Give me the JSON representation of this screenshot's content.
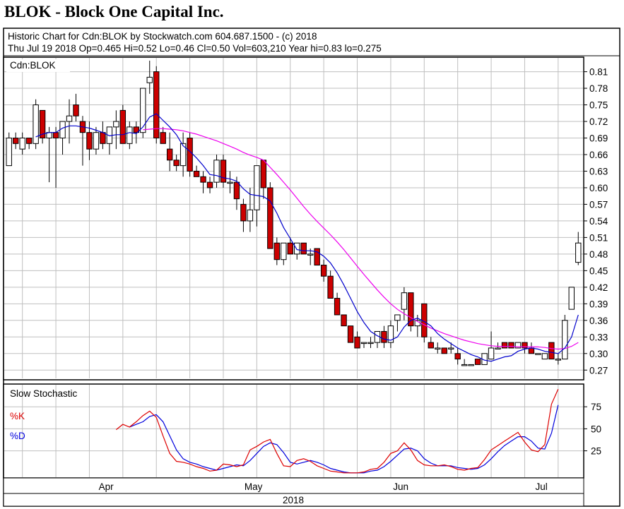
{
  "page_title": "BLOK - Block One Capital Inc.",
  "header": {
    "line1": "Historic Chart for Cdn:BLOK by Stockwatch.com 604.687.1500 - (c) 2018",
    "line2": "Thu Jul 19 2018  Op=0.465  Hi=0.52  Lo=0.46  Cl=0.50  Vol=603,210  Year hi=0.83  lo=0.275"
  },
  "colors": {
    "up_fill": "#ffffff",
    "down_fill": "#cc0000",
    "ma_short": "#0000cc",
    "ma_long": "#ee00ee",
    "k_line": "#dd0000",
    "d_line": "#0000dd",
    "grid": "#bfbfbf"
  },
  "chart_data": [
    {
      "type": "candlestick",
      "panel_label": "Cdn:BLOK",
      "ylim": [
        0.255,
        0.835
      ],
      "yticks": [
        0.81,
        0.78,
        0.75,
        0.72,
        0.69,
        0.66,
        0.63,
        0.6,
        0.57,
        0.54,
        0.51,
        0.48,
        0.45,
        0.42,
        0.39,
        0.36,
        0.33,
        0.3,
        0.27
      ],
      "ytick_labels": [
        "0.81",
        "0.78",
        "0.75",
        "0.72",
        "0.69",
        "0.66",
        "0.63",
        "0.60",
        "0.57",
        "0.54",
        "0.51",
        "0.48",
        "0.45",
        "0.42",
        "0.39",
        "0.36",
        "0.33",
        "0.30",
        "0.27"
      ],
      "x_categories": [
        "Apr",
        "May",
        "Jun",
        "Jul"
      ],
      "x_category_positions": [
        14.5,
        36.5,
        58.5,
        79.5
      ],
      "x_year": "2018",
      "candles": [
        [
          0.64,
          0.7,
          0.64,
          0.69
        ],
        [
          0.69,
          0.7,
          0.67,
          0.68
        ],
        [
          0.67,
          0.7,
          0.66,
          0.69
        ],
        [
          0.69,
          0.69,
          0.67,
          0.68
        ],
        [
          0.68,
          0.76,
          0.67,
          0.75
        ],
        [
          0.74,
          0.74,
          0.68,
          0.69
        ],
        [
          0.69,
          0.71,
          0.61,
          0.7
        ],
        [
          0.7,
          0.71,
          0.6,
          0.69
        ],
        [
          0.69,
          0.72,
          0.66,
          0.72
        ],
        [
          0.72,
          0.76,
          0.68,
          0.73
        ],
        [
          0.75,
          0.77,
          0.72,
          0.73
        ],
        [
          0.72,
          0.73,
          0.64,
          0.7
        ],
        [
          0.7,
          0.72,
          0.65,
          0.67
        ],
        [
          0.67,
          0.71,
          0.66,
          0.7
        ],
        [
          0.7,
          0.72,
          0.67,
          0.68
        ],
        [
          0.68,
          0.71,
          0.66,
          0.71
        ],
        [
          0.71,
          0.74,
          0.67,
          0.72
        ],
        [
          0.74,
          0.75,
          0.68,
          0.68
        ],
        [
          0.68,
          0.72,
          0.67,
          0.71
        ],
        [
          0.71,
          0.72,
          0.68,
          0.7
        ],
        [
          0.7,
          0.78,
          0.69,
          0.78
        ],
        [
          0.79,
          0.83,
          0.77,
          0.8
        ],
        [
          0.81,
          0.82,
          0.68,
          0.69
        ],
        [
          0.7,
          0.71,
          0.68,
          0.68
        ],
        [
          0.67,
          0.7,
          0.63,
          0.65
        ],
        [
          0.65,
          0.66,
          0.63,
          0.64
        ],
        [
          0.64,
          0.7,
          0.62,
          0.68
        ],
        [
          0.69,
          0.7,
          0.62,
          0.63
        ],
        [
          0.63,
          0.64,
          0.62,
          0.62
        ],
        [
          0.62,
          0.63,
          0.59,
          0.61
        ],
        [
          0.61,
          0.62,
          0.59,
          0.6
        ],
        [
          0.61,
          0.66,
          0.6,
          0.65
        ],
        [
          0.65,
          0.66,
          0.6,
          0.61
        ],
        [
          0.61,
          0.63,
          0.59,
          0.61
        ],
        [
          0.61,
          0.62,
          0.56,
          0.58
        ],
        [
          0.57,
          0.58,
          0.52,
          0.54
        ],
        [
          0.54,
          0.6,
          0.52,
          0.56
        ],
        [
          0.56,
          0.64,
          0.53,
          0.64
        ],
        [
          0.65,
          0.65,
          0.58,
          0.6
        ],
        [
          0.6,
          0.61,
          0.49,
          0.49
        ],
        [
          0.5,
          0.51,
          0.46,
          0.47
        ],
        [
          0.47,
          0.5,
          0.46,
          0.5
        ],
        [
          0.5,
          0.51,
          0.48,
          0.48
        ],
        [
          0.48,
          0.5,
          0.47,
          0.5
        ],
        [
          0.5,
          0.5,
          0.48,
          0.48
        ],
        [
          0.48,
          0.49,
          0.46,
          0.48
        ],
        [
          0.49,
          0.49,
          0.46,
          0.46
        ],
        [
          0.46,
          0.47,
          0.43,
          0.44
        ],
        [
          0.44,
          0.45,
          0.4,
          0.4
        ],
        [
          0.4,
          0.41,
          0.37,
          0.37
        ],
        [
          0.37,
          0.37,
          0.35,
          0.35
        ],
        [
          0.35,
          0.35,
          0.32,
          0.32
        ],
        [
          0.33,
          0.34,
          0.31,
          0.31
        ],
        [
          0.32,
          0.32,
          0.31,
          0.32
        ],
        [
          0.32,
          0.33,
          0.31,
          0.32
        ],
        [
          0.32,
          0.34,
          0.31,
          0.34
        ],
        [
          0.34,
          0.35,
          0.31,
          0.32
        ],
        [
          0.32,
          0.36,
          0.31,
          0.35
        ],
        [
          0.36,
          0.37,
          0.34,
          0.37
        ],
        [
          0.38,
          0.42,
          0.36,
          0.41
        ],
        [
          0.41,
          0.41,
          0.34,
          0.35
        ],
        [
          0.35,
          0.37,
          0.33,
          0.36
        ],
        [
          0.39,
          0.39,
          0.32,
          0.33
        ],
        [
          0.32,
          0.33,
          0.31,
          0.31
        ],
        [
          0.31,
          0.32,
          0.3,
          0.31
        ],
        [
          0.31,
          0.31,
          0.3,
          0.3
        ],
        [
          0.31,
          0.32,
          0.3,
          0.31
        ],
        [
          0.3,
          0.31,
          0.28,
          0.29
        ],
        [
          0.28,
          0.29,
          0.28,
          0.28
        ],
        [
          0.28,
          0.28,
          0.28,
          0.28
        ],
        [
          0.29,
          0.29,
          0.28,
          0.28
        ],
        [
          0.28,
          0.3,
          0.28,
          0.3
        ],
        [
          0.29,
          0.34,
          0.29,
          0.31
        ],
        [
          0.31,
          0.32,
          0.31,
          0.31
        ],
        [
          0.32,
          0.32,
          0.31,
          0.31
        ],
        [
          0.32,
          0.32,
          0.31,
          0.31
        ],
        [
          0.31,
          0.32,
          0.31,
          0.32
        ],
        [
          0.32,
          0.32,
          0.3,
          0.31
        ],
        [
          0.31,
          0.32,
          0.3,
          0.3
        ],
        [
          0.3,
          0.3,
          0.3,
          0.3
        ],
        [
          0.29,
          0.3,
          0.29,
          0.3
        ],
        [
          0.32,
          0.32,
          0.29,
          0.29
        ],
        [
          0.29,
          0.3,
          0.28,
          0.29
        ],
        [
          0.29,
          0.37,
          0.29,
          0.36
        ],
        [
          0.38,
          0.42,
          0.38,
          0.42
        ],
        [
          0.465,
          0.52,
          0.46,
          0.5
        ]
      ],
      "ma_short": [
        null,
        null,
        null,
        null,
        0.692,
        0.697,
        0.7,
        0.7,
        0.708,
        0.712,
        0.712,
        0.71,
        0.708,
        0.704,
        0.7,
        0.694,
        0.696,
        0.696,
        0.7,
        0.698,
        0.71,
        0.728,
        0.734,
        0.722,
        0.71,
        0.696,
        0.676,
        0.666,
        0.654,
        0.64,
        0.624,
        0.622,
        0.618,
        0.616,
        0.612,
        0.598,
        0.588,
        0.586,
        0.584,
        0.576,
        0.554,
        0.528,
        0.508,
        0.488,
        0.486,
        0.486,
        0.484,
        0.476,
        0.464,
        0.446,
        0.424,
        0.4,
        0.376,
        0.356,
        0.34,
        0.332,
        0.326,
        0.324,
        0.33,
        0.348,
        0.36,
        0.364,
        0.358,
        0.35,
        0.336,
        0.326,
        0.318,
        0.31,
        0.304,
        0.298,
        0.294,
        0.288,
        0.286,
        0.29,
        0.294,
        0.296,
        0.304,
        0.308,
        0.31,
        0.308,
        0.304,
        0.302,
        0.3,
        0.31,
        0.33,
        0.37
      ],
      "ma_long": [
        null,
        null,
        null,
        null,
        null,
        null,
        null,
        null,
        null,
        null,
        null,
        null,
        null,
        null,
        null,
        null,
        null,
        null,
        null,
        null,
        0.705,
        0.706,
        0.707,
        0.707,
        0.706,
        0.705,
        0.703,
        0.7,
        0.697,
        0.693,
        0.689,
        0.685,
        0.68,
        0.675,
        0.67,
        0.664,
        0.659,
        0.655,
        0.65,
        0.637,
        0.624,
        0.61,
        0.596,
        0.581,
        0.566,
        0.552,
        0.539,
        0.527,
        0.515,
        0.502,
        0.488,
        0.473,
        0.458,
        0.443,
        0.429,
        0.415,
        0.402,
        0.39,
        0.38,
        0.372,
        0.365,
        0.358,
        0.352,
        0.346,
        0.341,
        0.336,
        0.332,
        0.328,
        0.324,
        0.321,
        0.318,
        0.316,
        0.314,
        0.313,
        0.313,
        0.313,
        0.312,
        0.312,
        0.312,
        0.312,
        0.311,
        0.309,
        0.308,
        0.309,
        0.313,
        0.32
      ]
    },
    {
      "type": "line",
      "panel_label": "Slow Stochastic",
      "ylim": [
        -5,
        100
      ],
      "yticks": [
        75,
        50,
        25
      ],
      "ytick_labels": [
        "75",
        "50",
        "25"
      ],
      "series": [
        {
          "name": "%K",
          "values": [
            null,
            null,
            null,
            null,
            null,
            null,
            null,
            null,
            null,
            null,
            null,
            null,
            null,
            null,
            null,
            null,
            49,
            55,
            52,
            58,
            65,
            70,
            63,
            42,
            22,
            13,
            12,
            10,
            7,
            5,
            2,
            3,
            10,
            9,
            7,
            9,
            26,
            30,
            35,
            38,
            22,
            8,
            7,
            14,
            16,
            13,
            8,
            5,
            2,
            1,
            0,
            0,
            0,
            1,
            4,
            5,
            12,
            22,
            25,
            34,
            26,
            14,
            9,
            8,
            8,
            9,
            7,
            4,
            3,
            5,
            6,
            15,
            26,
            31,
            36,
            41,
            46,
            35,
            26,
            24,
            32,
            78,
            95
          ]
        },
        {
          "name": "%D",
          "values": [
            null,
            null,
            null,
            null,
            null,
            null,
            null,
            null,
            null,
            null,
            null,
            null,
            null,
            null,
            null,
            null,
            null,
            null,
            52,
            55,
            58,
            64,
            66,
            58,
            42,
            26,
            16,
            12,
            10,
            7,
            5,
            3,
            5,
            7,
            9,
            8,
            14,
            22,
            30,
            34,
            32,
            23,
            12,
            10,
            12,
            14,
            12,
            9,
            5,
            3,
            1,
            0,
            0,
            0,
            2,
            3,
            7,
            13,
            20,
            27,
            28,
            25,
            16,
            11,
            8,
            8,
            8,
            6,
            5,
            4,
            5,
            9,
            16,
            24,
            31,
            36,
            41,
            41,
            36,
            28,
            27,
            45,
            77
          ]
        }
      ]
    }
  ]
}
